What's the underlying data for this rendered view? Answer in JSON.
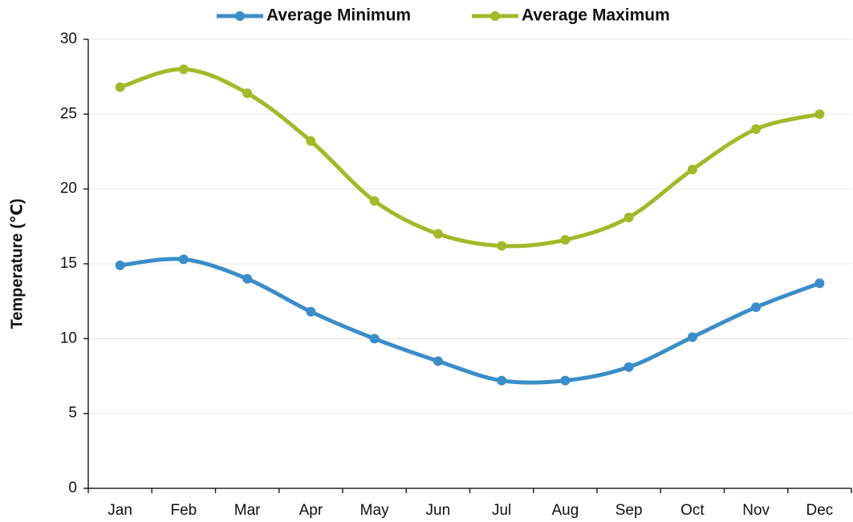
{
  "chart_data": {
    "type": "line",
    "y_label": "Temperature (℃)",
    "categories": [
      "Jan",
      "Feb",
      "Mar",
      "Apr",
      "May",
      "Jun",
      "Jul",
      "Aug",
      "Sep",
      "Oct",
      "Nov",
      "Dec"
    ],
    "series": [
      {
        "name": "Average Minimum",
        "color": "#3a8dc8",
        "values": [
          14.9,
          15.3,
          14.0,
          11.8,
          10.0,
          8.5,
          7.2,
          7.2,
          8.1,
          10.1,
          12.1,
          13.7
        ]
      },
      {
        "name": "Average Maximum",
        "color": "#a4b82a",
        "values": [
          26.8,
          28.0,
          26.4,
          23.2,
          19.2,
          17.0,
          16.2,
          16.6,
          18.1,
          21.3,
          24.0,
          25.0
        ]
      }
    ],
    "ylim": [
      0,
      30
    ],
    "yticks": [
      0,
      5,
      10,
      15,
      20,
      25,
      30
    ],
    "grid": true,
    "smooth": true,
    "legend": "top"
  }
}
